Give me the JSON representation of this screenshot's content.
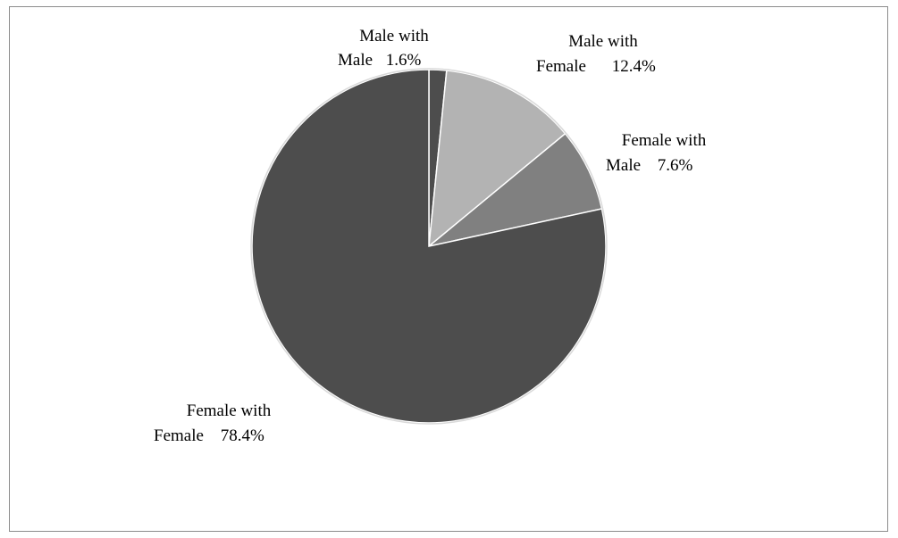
{
  "chart_data": {
    "type": "pie",
    "start_angle_deg": 0,
    "direction": "clockwise",
    "slices": [
      {
        "line1": "Male with",
        "line2": "Male",
        "pct_text": "1.6%",
        "value": 1.6,
        "color": "#4d4d4d"
      },
      {
        "line1": "Male with",
        "line2": "Female",
        "pct_text": "12.4%",
        "value": 12.4,
        "color": "#b3b3b3"
      },
      {
        "line1": "Female with",
        "line2": "Male",
        "pct_text": "7.6%",
        "value": 7.6,
        "color": "#808080"
      },
      {
        "line1": "Female with",
        "line2": "Female",
        "pct_text": "78.4%",
        "value": 78.4,
        "color": "#4d4d4d"
      }
    ],
    "slice_border_color": "#ffffff"
  }
}
